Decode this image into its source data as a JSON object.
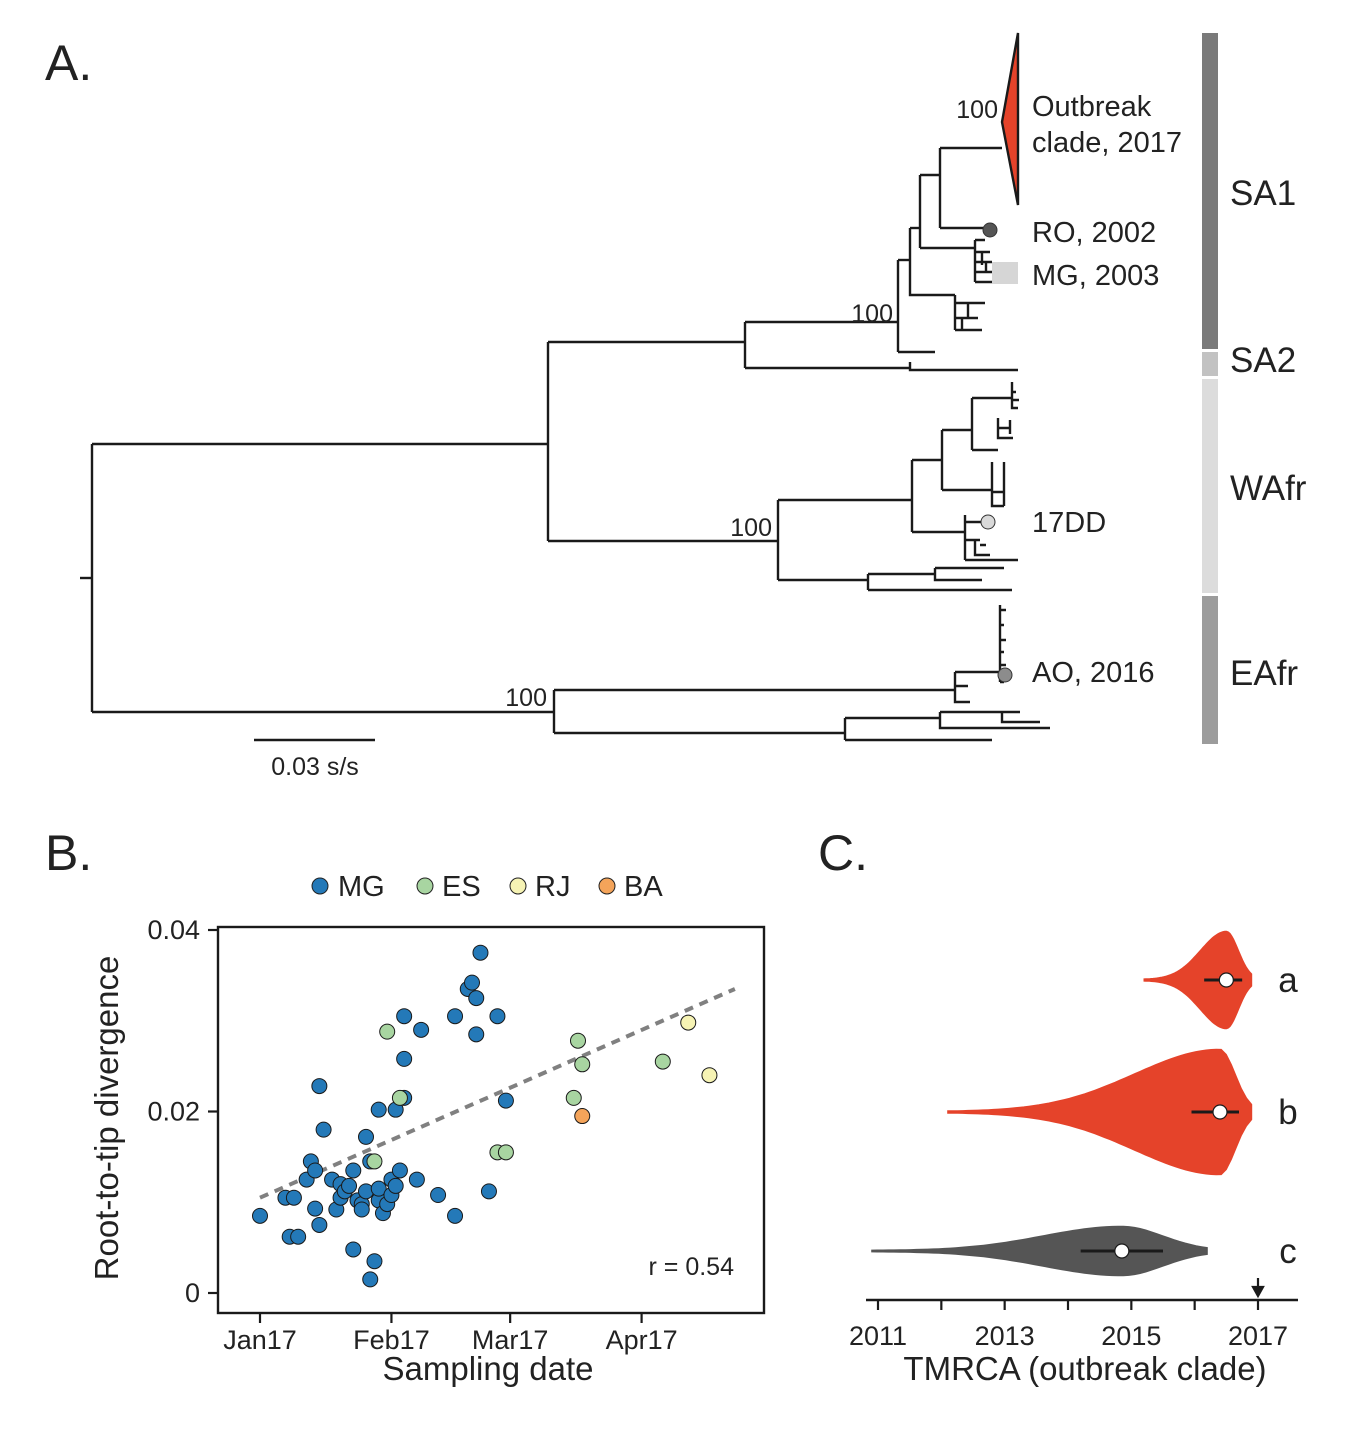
{
  "panels": {
    "a": "A.",
    "b": "B.",
    "c": "C."
  },
  "tree": {
    "tips": [
      {
        "label": "Outbreak\nclade, 2017",
        "color": "#e5432a"
      },
      {
        "label": "RO, 2002",
        "color": "#555555"
      },
      {
        "label": "MG, 2003",
        "color": "#cccccc"
      },
      {
        "label": "17DD",
        "color": "#d9d9d9"
      },
      {
        "label": "AO, 2016",
        "color": "#8c8c8c"
      }
    ],
    "bootstrap": [
      "100",
      "100",
      "100",
      "100"
    ],
    "scale_label": "0.03 s/s",
    "genotypes": [
      {
        "name": "SA1",
        "color": "#7a7a7a"
      },
      {
        "name": "SA2",
        "color": "#c2c2c2"
      },
      {
        "name": "WAfr",
        "color": "#dcdcdc"
      },
      {
        "name": "EAfr",
        "color": "#9c9c9c"
      }
    ]
  },
  "legend": [
    {
      "name": "MG",
      "color": "#2479b8"
    },
    {
      "name": "ES",
      "color": "#a8d5a1"
    },
    {
      "name": "RJ",
      "color": "#f6f3b4"
    },
    {
      "name": "BA",
      "color": "#f4a45a"
    }
  ],
  "chart_data": [
    {
      "type": "scatter",
      "xlabel": "Sampling date",
      "ylabel": "Root-to-tip divergence",
      "xticks": [
        "Jan17",
        "Feb17",
        "Mar17",
        "Apr17"
      ],
      "yticks": [
        "0",
        "0.02",
        "0.04"
      ],
      "ylim": [
        0,
        0.04
      ],
      "annotation": "r = 0.54",
      "trend": {
        "x": [
          "2017-01-01",
          "2017-04-23"
        ],
        "y": [
          0.0105,
          0.0335
        ]
      },
      "series": [
        {
          "name": "MG",
          "points": [
            [
              "2017-01-01",
              0.0085
            ],
            [
              "2017-01-07",
              0.0105
            ],
            [
              "2017-01-08",
              0.0062
            ],
            [
              "2017-01-09",
              0.0105
            ],
            [
              "2017-01-10",
              0.0062
            ],
            [
              "2017-01-12",
              0.0125
            ],
            [
              "2017-01-13",
              0.0145
            ],
            [
              "2017-01-14",
              0.0093
            ],
            [
              "2017-01-14",
              0.0135
            ],
            [
              "2017-01-15",
              0.0075
            ],
            [
              "2017-01-15",
              0.0228
            ],
            [
              "2017-01-16",
              0.018
            ],
            [
              "2017-01-18",
              0.0125
            ],
            [
              "2017-01-19",
              0.0092
            ],
            [
              "2017-01-20",
              0.0105
            ],
            [
              "2017-01-20",
              0.012
            ],
            [
              "2017-01-21",
              0.0112
            ],
            [
              "2017-01-22",
              0.0118
            ],
            [
              "2017-01-23",
              0.0048
            ],
            [
              "2017-01-23",
              0.0135
            ],
            [
              "2017-01-24",
              0.0102
            ],
            [
              "2017-01-25",
              0.0098
            ],
            [
              "2017-01-25",
              0.0092
            ],
            [
              "2017-01-26",
              0.0172
            ],
            [
              "2017-01-26",
              0.0112
            ],
            [
              "2017-01-27",
              0.0145
            ],
            [
              "2017-01-27",
              0.0015
            ],
            [
              "2017-01-28",
              0.0035
            ],
            [
              "2017-01-29",
              0.0102
            ],
            [
              "2017-01-29",
              0.0115
            ],
            [
              "2017-01-29",
              0.0202
            ],
            [
              "2017-01-30",
              0.0088
            ],
            [
              "2017-01-31",
              0.0098
            ],
            [
              "2017-02-01",
              0.0125
            ],
            [
              "2017-02-01",
              0.0108
            ],
            [
              "2017-02-02",
              0.0118
            ],
            [
              "2017-02-02",
              0.0202
            ],
            [
              "2017-02-03",
              0.0135
            ],
            [
              "2017-02-04",
              0.0258
            ],
            [
              "2017-02-04",
              0.0305
            ],
            [
              "2017-02-04",
              0.0215
            ],
            [
              "2017-02-07",
              0.0125
            ],
            [
              "2017-02-08",
              0.029
            ],
            [
              "2017-02-12",
              0.0108
            ],
            [
              "2017-02-16",
              0.0085
            ],
            [
              "2017-02-16",
              0.0305
            ],
            [
              "2017-02-19",
              0.0335
            ],
            [
              "2017-02-20",
              0.0342
            ],
            [
              "2017-02-21",
              0.0285
            ],
            [
              "2017-02-21",
              0.0325
            ],
            [
              "2017-02-22",
              0.0375
            ],
            [
              "2017-02-24",
              0.0112
            ],
            [
              "2017-02-26",
              0.0305
            ],
            [
              "2017-02-28",
              0.0212
            ]
          ]
        },
        {
          "name": "ES",
          "points": [
            [
              "2017-01-28",
              0.0145
            ],
            [
              "2017-01-31",
              0.0288
            ],
            [
              "2017-02-03",
              0.0215
            ],
            [
              "2017-02-26",
              0.0155
            ],
            [
              "2017-02-28",
              0.0155
            ],
            [
              "2017-03-16",
              0.0215
            ],
            [
              "2017-03-17",
              0.0278
            ],
            [
              "2017-03-18",
              0.0252
            ],
            [
              "2017-04-06",
              0.0255
            ]
          ]
        },
        {
          "name": "RJ",
          "points": [
            [
              "2017-04-12",
              0.0298
            ],
            [
              "2017-04-17",
              0.024
            ]
          ]
        },
        {
          "name": "BA",
          "points": [
            [
              "2017-03-18",
              0.0195
            ]
          ]
        }
      ]
    },
    {
      "type": "violin",
      "xlabel": "TMRCA (outbreak clade)",
      "xticks": [
        "2011",
        "2013",
        "2015",
        "2017"
      ],
      "arrow_at": 2017.0,
      "series": [
        {
          "name": "a",
          "color": "#e5432a",
          "min": 2015.2,
          "max": 2016.9,
          "median": 2016.5,
          "hpd": [
            2016.15,
            2016.75
          ]
        },
        {
          "name": "b",
          "color": "#e5432a",
          "min": 2012.1,
          "max": 2016.9,
          "median": 2016.4,
          "hpd": [
            2015.95,
            2016.7
          ]
        },
        {
          "name": "c",
          "color": "#555555",
          "min": 2010.9,
          "max": 2016.2,
          "median": 2014.85,
          "hpd": [
            2014.2,
            2015.5
          ]
        }
      ]
    }
  ]
}
